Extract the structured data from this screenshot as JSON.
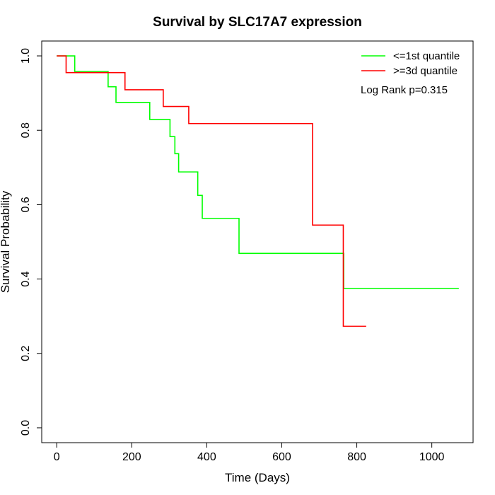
{
  "chart_data": {
    "type": "line",
    "title": "Survival by SLC17A7 expression",
    "xlabel": "Time (Days)",
    "ylabel": "Survival Probability",
    "xlim": [
      -40,
      1110
    ],
    "ylim": [
      -0.04,
      1.04
    ],
    "x_ticks": [
      0,
      200,
      400,
      600,
      800,
      1000
    ],
    "x_tick_labels": [
      "0",
      "200",
      "400",
      "600",
      "800",
      "1000"
    ],
    "y_ticks": [
      0.0,
      0.2,
      0.4,
      0.6,
      0.8,
      1.0
    ],
    "y_tick_labels": [
      "0.0",
      "0.2",
      "0.4",
      "0.6",
      "0.8",
      "1.0"
    ],
    "grid": false,
    "legend_position": "top-right",
    "annotation": "Log Rank p=0.315",
    "series": [
      {
        "name": "<=1st quantile",
        "color": "#00ff00",
        "step": true,
        "x": [
          0,
          48,
          137,
          158,
          248,
          302,
          315,
          325,
          376,
          388,
          486,
          765,
          1072
        ],
        "y": [
          1.0,
          0.958,
          0.917,
          0.875,
          0.829,
          0.783,
          0.737,
          0.688,
          0.625,
          0.563,
          0.469,
          0.375,
          0.375
        ]
      },
      {
        "name": ">=3d quantile",
        "color": "#ff0000",
        "step": true,
        "x": [
          0,
          25,
          182,
          284,
          352,
          682,
          764,
          825
        ],
        "y": [
          1.0,
          0.955,
          0.909,
          0.864,
          0.818,
          0.545,
          0.273,
          0.273
        ]
      }
    ]
  }
}
